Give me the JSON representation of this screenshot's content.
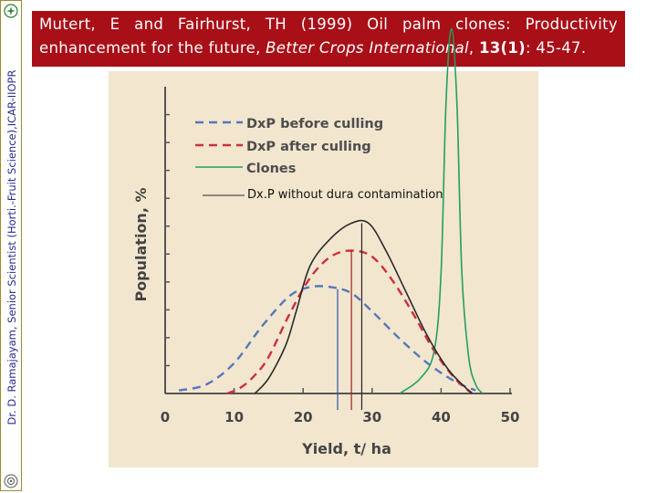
{
  "sidebar": {
    "author_text": "Dr. D. Ramajayam, Senior Scientist (Horti.-Fruit Science),ICAR-IIOPR"
  },
  "citation": {
    "authors_year": "Mutert, E and Fairhurst, TH (1999) Oil palm clones: Productivity enhancement for the future,",
    "journal": "Better Crops International",
    "volume": "13",
    "issue": "(1)",
    "pages": ": 45-47."
  },
  "colors": {
    "title_bg": "#a80f17",
    "figure_bg": "#f2e6cf",
    "dxp_before": "#5577bb",
    "dxp_after": "#cc2f3c",
    "clones": "#22a060",
    "dxp_without": "#2a2a2a"
  },
  "chart_data": {
    "type": "line",
    "xlabel": "Yield, t/ ha",
    "ylabel": "Population, %",
    "xlim": [
      0,
      50
    ],
    "xticks": [
      0,
      10,
      20,
      30,
      40,
      50
    ],
    "ylim": [
      0,
      100
    ],
    "y_tick_labels": false,
    "grid": false,
    "legend_position": "top-left",
    "series": [
      {
        "name": "DxP before culling",
        "style": "dashed",
        "color": "#5577bb",
        "x": [
          2,
          6,
          10,
          14,
          18,
          21,
          24,
          27,
          30,
          34,
          38,
          42,
          45
        ],
        "y": [
          1,
          3,
          10,
          22,
          32,
          35,
          35,
          33,
          27,
          18,
          10,
          4,
          1
        ],
        "mean_x": 25
      },
      {
        "name": "DxP after culling",
        "style": "dashed",
        "color": "#cc2f3c",
        "x": [
          9,
          11,
          13,
          15,
          18,
          21,
          24,
          27,
          30,
          33,
          36,
          39,
          42,
          44.5
        ],
        "y": [
          0,
          2,
          6,
          12,
          26,
          38,
          45,
          47,
          45,
          37,
          26,
          14,
          5,
          0
        ],
        "mean_x": 27
      },
      {
        "name": "Clones",
        "style": "solid",
        "color": "#22a060",
        "x": [
          34,
          37,
          39,
          40,
          40.7,
          41.5,
          42.3,
          43,
          44,
          45,
          46
        ],
        "y": [
          0,
          5,
          14,
          40,
          95,
          120,
          95,
          40,
          12,
          3,
          0
        ],
        "mean_x": 41.5
      },
      {
        "name": "Dx.P without dura contamination",
        "style": "solid",
        "color": "#2a2a2a",
        "x": [
          13,
          15,
          17.5,
          19,
          21,
          24,
          27,
          29.5,
          32,
          35,
          38,
          41,
          43.5,
          44.5
        ],
        "y": [
          0,
          5,
          16,
          27,
          42,
          51,
          56,
          56,
          47,
          33,
          19,
          8,
          2,
          0
        ],
        "mean_x": 28.5
      }
    ],
    "annotations": [
      "Dx.P without dura contamination"
    ]
  }
}
